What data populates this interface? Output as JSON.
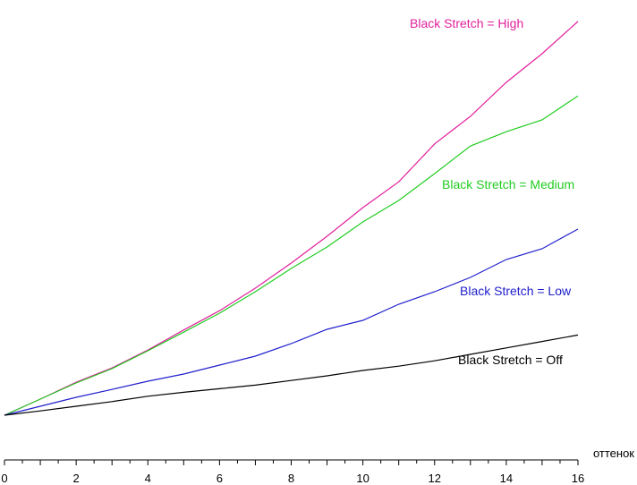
{
  "chart_data": {
    "type": "line",
    "xlabel": "оттенок",
    "ylabel": "",
    "xlim": [
      0,
      16
    ],
    "ylim": [
      0,
      1.16
    ],
    "x_ticks": [
      0,
      2,
      4,
      6,
      8,
      10,
      12,
      14,
      16
    ],
    "grid": false,
    "legend": "inline labels",
    "x": [
      0,
      1,
      2,
      3,
      4,
      5,
      6,
      7,
      8,
      9,
      10,
      11,
      12,
      13,
      14,
      15,
      16
    ],
    "series": [
      {
        "name": "Black Stretch = High",
        "color": "#e0209c",
        "values": [
          0,
          0.045,
          0.092,
          0.132,
          0.182,
          0.238,
          0.292,
          0.355,
          0.425,
          0.5,
          0.58,
          0.652,
          0.758,
          0.835,
          0.93,
          1.01,
          1.1
        ]
      },
      {
        "name": "Black Stretch = Medium",
        "color": "#22cc22",
        "values": [
          0,
          0.045,
          0.09,
          0.13,
          0.18,
          0.232,
          0.285,
          0.345,
          0.41,
          0.47,
          0.54,
          0.6,
          0.675,
          0.752,
          0.792,
          0.825,
          0.892
        ]
      },
      {
        "name": "Black Stretch = Low",
        "color": "#2020cc",
        "values": [
          0,
          0.025,
          0.05,
          0.072,
          0.095,
          0.115,
          0.14,
          0.165,
          0.2,
          0.24,
          0.265,
          0.31,
          0.345,
          0.385,
          0.435,
          0.465,
          0.52
        ]
      },
      {
        "name": "Black Stretch = Off",
        "color": "#000000",
        "values": [
          0,
          0.012,
          0.025,
          0.038,
          0.053,
          0.064,
          0.074,
          0.084,
          0.097,
          0.11,
          0.125,
          0.137,
          0.152,
          0.17,
          0.188,
          0.206,
          0.224
        ]
      }
    ]
  }
}
